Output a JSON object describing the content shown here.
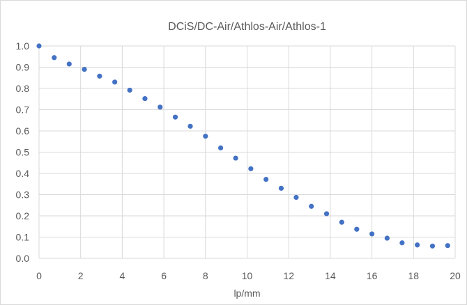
{
  "chart_data": {
    "type": "scatter",
    "title": "DCiS/DC-Air/Athlos-Air/Athlos-1",
    "xlabel": "lp/mm",
    "ylabel": "",
    "xlim": [
      0,
      20
    ],
    "ylim": [
      0.0,
      1.0
    ],
    "x_ticks": [
      "0",
      "2",
      "4",
      "6",
      "8",
      "10",
      "12",
      "14",
      "16",
      "18",
      "20"
    ],
    "y_ticks": [
      "0.0",
      "0.1",
      "0.2",
      "0.3",
      "0.4",
      "0.5",
      "0.6",
      "0.7",
      "0.8",
      "0.9",
      "1.0"
    ],
    "grid": true,
    "legend": "none",
    "marker_color": "#4472c4",
    "series": [
      {
        "x": [
          0,
          0.73,
          1.45,
          2.18,
          2.91,
          3.64,
          4.36,
          5.09,
          5.82,
          6.55,
          7.27,
          8.0,
          8.73,
          9.45,
          10.18,
          10.91,
          11.64,
          12.36,
          13.09,
          13.82,
          14.55,
          15.27,
          16.0,
          16.73,
          17.45,
          18.18,
          18.91,
          19.64
        ],
        "y": [
          1.0,
          0.945,
          0.915,
          0.89,
          0.858,
          0.83,
          0.792,
          0.752,
          0.712,
          0.665,
          0.622,
          0.575,
          0.52,
          0.472,
          0.422,
          0.372,
          0.33,
          0.287,
          0.245,
          0.21,
          0.17,
          0.137,
          0.115,
          0.095,
          0.073,
          0.063,
          0.058,
          0.06
        ]
      }
    ]
  }
}
